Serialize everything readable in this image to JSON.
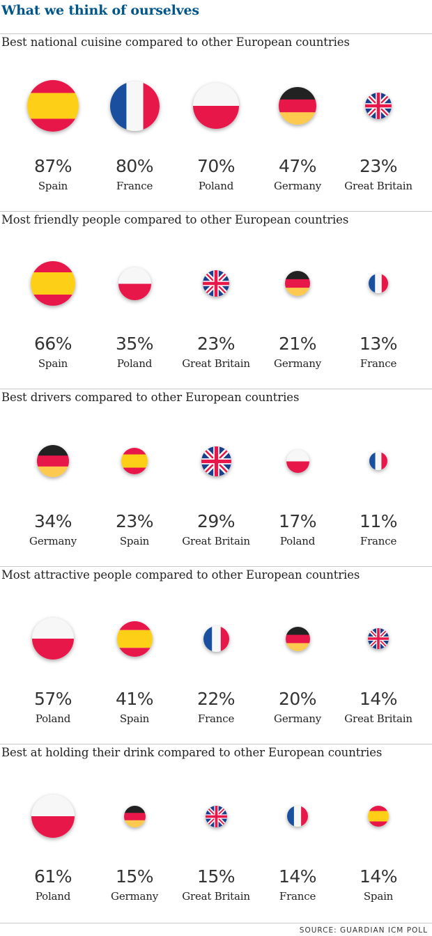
{
  "title": "What we think of ourselves",
  "source": "SOURCE: GUARDIAN ICM POLL",
  "colors": {
    "spain_red": "#e8174a",
    "spain_yellow": "#fdd017",
    "france_blue": "#1a4fa0",
    "france_red": "#e8174a",
    "poland_red": "#e8174a",
    "poland_white": "#f7f7f7",
    "germany_black": "#222222",
    "germany_red": "#e8174a",
    "germany_gold": "#fdc94f",
    "uk_blue": "#1a3e8c",
    "uk_red": "#e8174a",
    "title_blue": "#005689"
  },
  "chart_data": [
    {
      "type": "bubble",
      "title": "Best national cuisine compared to other European countries",
      "categories": [
        "Spain",
        "France",
        "Poland",
        "Germany",
        "Great Britain"
      ],
      "values": [
        87,
        80,
        70,
        47,
        23
      ],
      "labels": [
        "87%",
        "80%",
        "70%",
        "47%",
        "23%"
      ],
      "flags": [
        "spain",
        "france",
        "poland",
        "germany",
        "uk"
      ]
    },
    {
      "type": "bubble",
      "title": "Most friendly people compared to other European countries",
      "categories": [
        "Spain",
        "Poland",
        "Great Britain",
        "Germany",
        "France"
      ],
      "values": [
        66,
        35,
        23,
        21,
        13
      ],
      "labels": [
        "66%",
        "35%",
        "23%",
        "21%",
        "13%"
      ],
      "flags": [
        "spain",
        "poland",
        "uk",
        "germany",
        "france"
      ]
    },
    {
      "type": "bubble",
      "title": "Best drivers compared to other European countries",
      "categories": [
        "Germany",
        "Spain",
        "Great Britain",
        "Poland",
        "France"
      ],
      "values": [
        34,
        23,
        29,
        17,
        11
      ],
      "labels": [
        "34%",
        "23%",
        "29%",
        "17%",
        "11%"
      ],
      "flags": [
        "germany",
        "spain",
        "uk",
        "poland",
        "france"
      ]
    },
    {
      "type": "bubble",
      "title": "Most attractive people compared to other European countries",
      "categories": [
        "Poland",
        "Spain",
        "France",
        "Germany",
        "Great Britain"
      ],
      "values": [
        57,
        41,
        22,
        20,
        14
      ],
      "labels": [
        "57%",
        "41%",
        "22%",
        "20%",
        "14%"
      ],
      "flags": [
        "poland",
        "spain",
        "france",
        "germany",
        "uk"
      ]
    },
    {
      "type": "bubble",
      "title": "Best at holding their drink compared to other European countries",
      "categories": [
        "Poland",
        "Germany",
        "Great Britain",
        "France",
        "Spain"
      ],
      "values": [
        61,
        15,
        15,
        14,
        14
      ],
      "labels": [
        "61%",
        "15%",
        "15%",
        "14%",
        "14%"
      ],
      "flags": [
        "poland",
        "germany",
        "uk",
        "france",
        "spain"
      ]
    }
  ]
}
